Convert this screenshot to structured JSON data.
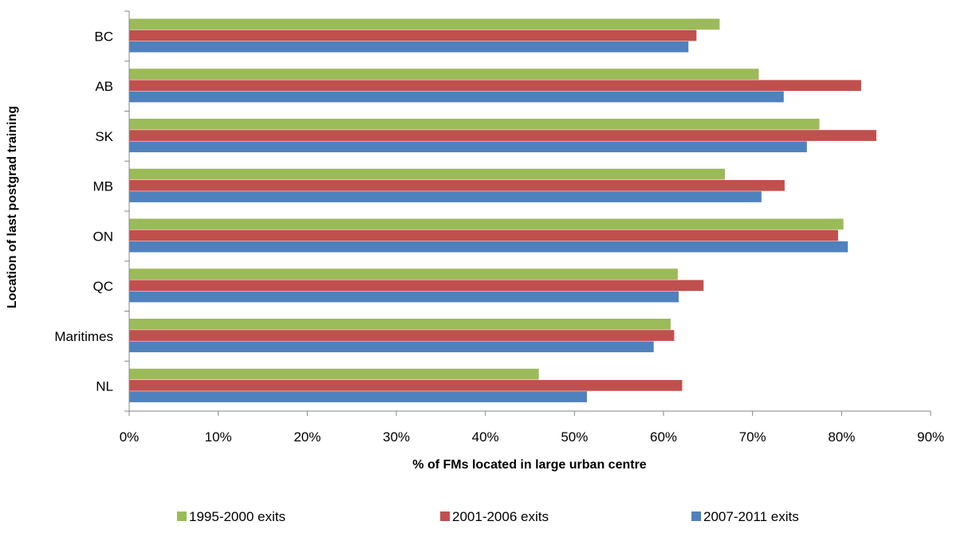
{
  "chart_data": {
    "type": "bar",
    "orientation": "horizontal",
    "title": "",
    "xlabel": "% of FMs located in large urban centre",
    "ylabel": "Location of last postgrad training",
    "categories": [
      "BC",
      "AB",
      "SK",
      "MB",
      "ON",
      "QC",
      "Maritimes",
      "NL"
    ],
    "series": [
      {
        "name": "1995-2000 exits",
        "color": "#9bbb59",
        "values": [
          66.3,
          70.7,
          77.5,
          66.9,
          80.2,
          61.6,
          60.8,
          46.0
        ]
      },
      {
        "name": "2001-2006 exits",
        "color": "#c0504d",
        "values": [
          63.7,
          82.2,
          83.9,
          73.6,
          79.6,
          64.5,
          61.2,
          62.1
        ]
      },
      {
        "name": "2007-2011 exits",
        "color": "#4f81bd",
        "values": [
          62.8,
          73.5,
          76.1,
          71.0,
          80.7,
          61.7,
          58.9,
          51.4
        ]
      }
    ],
    "xlim": [
      0,
      90
    ],
    "xticks": [
      "0%",
      "10%",
      "20%",
      "30%",
      "40%",
      "50%",
      "60%",
      "70%",
      "80%",
      "90%"
    ],
    "grid": false,
    "legend_position": "bottom"
  }
}
